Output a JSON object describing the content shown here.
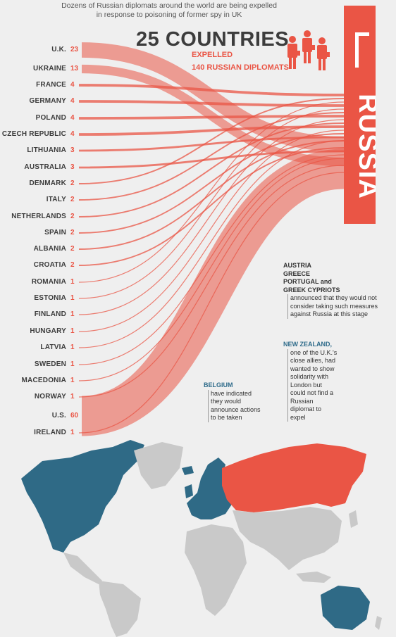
{
  "subtitle_line1": "Dozens of Russian diplomats around the world are being expelled",
  "subtitle_line2": "in response to poisoning of former spy in UK",
  "headline": "25 COUNTRIES",
  "expelled_label": "EXPELLED",
  "diplomats_label": "140 RUSSIAN DIPLOMATS",
  "russia_label": "RUSSIA",
  "colors": {
    "red": "#ea5545",
    "blue": "#2f6a86",
    "grey": "#c9c9c9",
    "bg": "#efefef"
  },
  "countries": [
    {
      "name": "U.K.",
      "count": "23"
    },
    {
      "name": "UKRAINE",
      "count": "13"
    },
    {
      "name": "FRANCE",
      "count": "4"
    },
    {
      "name": "GERMANY",
      "count": "4"
    },
    {
      "name": "POLAND",
      "count": "4"
    },
    {
      "name": "CZECH REPUBLIC",
      "count": "4"
    },
    {
      "name": "LITHUANIA",
      "count": "3"
    },
    {
      "name": "AUSTRALIA",
      "count": "3"
    },
    {
      "name": "DENMARK",
      "count": "2"
    },
    {
      "name": "ITALY",
      "count": "2"
    },
    {
      "name": "NETHERLANDS",
      "count": "2"
    },
    {
      "name": "SPAIN",
      "count": "2"
    },
    {
      "name": "ALBANIA",
      "count": "2"
    },
    {
      "name": "CROATIA",
      "count": "2"
    },
    {
      "name": "ROMANIA",
      "count": "1"
    },
    {
      "name": "ESTONIA",
      "count": "1"
    },
    {
      "name": "FINLAND",
      "count": "1"
    },
    {
      "name": "HUNGARY",
      "count": "1"
    },
    {
      "name": "LATVIA",
      "count": "1"
    },
    {
      "name": "SWEDEN",
      "count": "1"
    },
    {
      "name": "MACEDONIA",
      "count": "1"
    },
    {
      "name": "NORWAY",
      "count": "1"
    },
    {
      "name": "U.S.",
      "count": "60"
    },
    {
      "name": "IRELAND",
      "count": "1"
    }
  ],
  "notes": {
    "austria_block": {
      "lines": [
        "AUSTRIA",
        "GREECE",
        "PORTUGAL and",
        "GREEK CYPRIOTS"
      ],
      "body": [
        "announced that they would not",
        "consider taking such measures",
        "against Russia at this stage"
      ]
    },
    "new_zealand": {
      "title": "NEW ZEALAND,",
      "body": [
        "one of the U.K.'s",
        "close allies, had",
        "wanted to show",
        "solidarity with",
        "London but",
        "could not find a",
        "Russian",
        "diplomat to",
        "expel"
      ]
    },
    "belgium": {
      "title": "BELGIUM",
      "body": [
        "have indicated",
        "they would",
        "announce actions",
        "to be taken"
      ]
    }
  }
}
